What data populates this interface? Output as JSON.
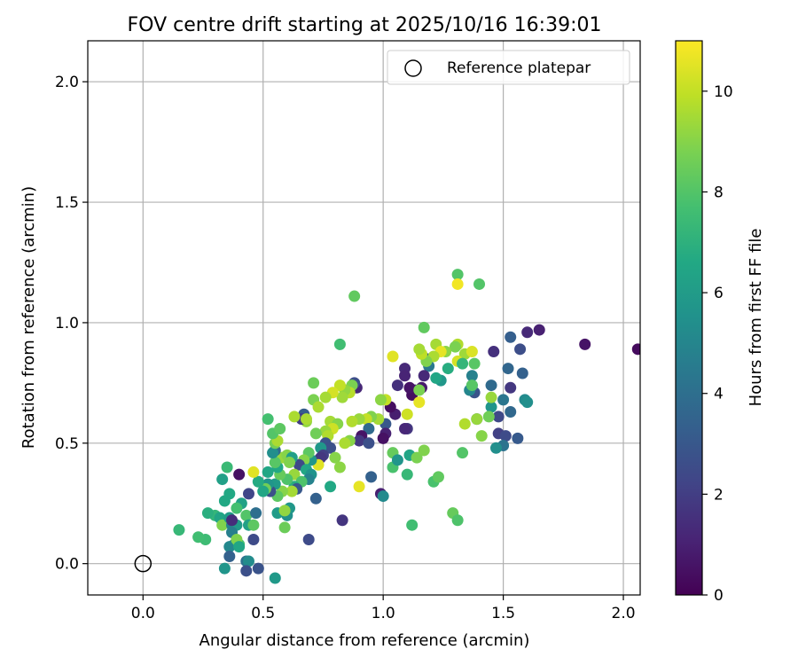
{
  "chart_data": {
    "type": "scatter",
    "title": "FOV centre drift starting at 2025/10/16 16:39:01",
    "xlabel": "Angular distance from reference (arcmin)",
    "ylabel": "Rotation from reference (arcmin)",
    "xlim": [
      -0.23,
      2.07
    ],
    "ylim": [
      -0.13,
      2.17
    ],
    "xticks": [
      0.0,
      0.5,
      1.0,
      1.5,
      2.0
    ],
    "xtick_labels": [
      "0.0",
      "0.5",
      "1.0",
      "1.5",
      "2.0"
    ],
    "yticks": [
      0.0,
      0.5,
      1.0,
      1.5,
      2.0
    ],
    "ytick_labels": [
      "0.0",
      "0.5",
      "1.0",
      "1.5",
      "2.0"
    ],
    "grid": true,
    "legend": {
      "position": "top-right",
      "entries": [
        "Reference platepar"
      ]
    },
    "reference_point": {
      "x": 0.0,
      "y": 0.0,
      "label": "Reference platepar"
    },
    "colorbar": {
      "label": "Hours from first FF file",
      "colormap": "viridis",
      "min": 0,
      "max": 11,
      "ticks": [
        0,
        2,
        4,
        6,
        8,
        10
      ],
      "tick_labels": [
        "0",
        "2",
        "4",
        "6",
        "8",
        "10"
      ]
    },
    "columns": [
      "x",
      "y",
      "hours"
    ],
    "points": [
      [
        2.06,
        0.89,
        0.3
      ],
      [
        1.84,
        0.91,
        0.6
      ],
      [
        1.65,
        0.97,
        1.0
      ],
      [
        1.6,
        0.96,
        1.3
      ],
      [
        1.57,
        0.89,
        2.6
      ],
      [
        1.53,
        0.94,
        3.3
      ],
      [
        1.46,
        0.88,
        1.5
      ],
      [
        1.52,
        0.81,
        3.6
      ],
      [
        1.58,
        0.79,
        3.4
      ],
      [
        1.59,
        0.68,
        5.2
      ],
      [
        1.6,
        0.67,
        5.4
      ],
      [
        1.53,
        0.73,
        1.8
      ],
      [
        1.45,
        0.74,
        3.8
      ],
      [
        1.5,
        0.68,
        4.3
      ],
      [
        1.53,
        0.63,
        3.7
      ],
      [
        1.48,
        0.61,
        2.4
      ],
      [
        1.48,
        0.54,
        2.1
      ],
      [
        1.51,
        0.53,
        2.5
      ],
      [
        1.5,
        0.49,
        4.2
      ],
      [
        1.56,
        0.52,
        3.1
      ],
      [
        1.47,
        0.48,
        5.4
      ],
      [
        1.45,
        0.65,
        5.7
      ],
      [
        1.45,
        0.69,
        9.3
      ],
      [
        1.44,
        0.61,
        8.6
      ],
      [
        1.41,
        0.53,
        9.0
      ],
      [
        1.39,
        0.6,
        3.8
      ],
      [
        1.38,
        0.71,
        2.8
      ],
      [
        1.37,
        0.74,
        4.3
      ],
      [
        1.36,
        0.72,
        5.0
      ],
      [
        1.37,
        0.78,
        4.8
      ],
      [
        1.38,
        0.83,
        8.1
      ],
      [
        1.34,
        0.87,
        9.4
      ],
      [
        1.37,
        0.88,
        10.4
      ],
      [
        1.31,
        0.91,
        9.7
      ],
      [
        1.3,
        0.9,
        8.8
      ],
      [
        1.31,
        0.84,
        10.3
      ],
      [
        1.33,
        0.83,
        7.2
      ],
      [
        1.27,
        0.81,
        6.8
      ],
      [
        1.24,
        0.76,
        5.8
      ],
      [
        1.19,
        0.82,
        4.4
      ],
      [
        1.18,
        0.85,
        3.4
      ],
      [
        1.17,
        0.78,
        1.3
      ],
      [
        1.16,
        0.73,
        0.8
      ],
      [
        1.13,
        0.72,
        1.3
      ],
      [
        1.12,
        0.7,
        0.4
      ],
      [
        1.11,
        0.73,
        0.6
      ],
      [
        1.09,
        0.81,
        1.3
      ],
      [
        1.09,
        0.78,
        1.1
      ],
      [
        1.06,
        0.74,
        1.5
      ],
      [
        1.04,
        0.86,
        10.5
      ],
      [
        1.17,
        0.98,
        8.3
      ],
      [
        1.22,
        0.91,
        9.5
      ],
      [
        1.26,
        0.88,
        9.1
      ],
      [
        1.24,
        0.88,
        10.6
      ],
      [
        1.21,
        0.86,
        9.6
      ],
      [
        1.18,
        0.84,
        8.9
      ],
      [
        1.16,
        0.87,
        9.9
      ],
      [
        1.15,
        0.89,
        9.5
      ],
      [
        1.15,
        0.72,
        8.8
      ],
      [
        1.15,
        0.67,
        10.6
      ],
      [
        1.1,
        0.62,
        10.2
      ],
      [
        1.1,
        0.56,
        1.8
      ],
      [
        1.09,
        0.56,
        1.2
      ],
      [
        1.05,
        0.62,
        0.9
      ],
      [
        1.03,
        0.65,
        0.4
      ],
      [
        1.01,
        0.68,
        10.0
      ],
      [
        0.99,
        0.68,
        9.1
      ],
      [
        1.01,
        0.58,
        3.0
      ],
      [
        1.01,
        0.54,
        1.0
      ],
      [
        1.0,
        0.52,
        0.5
      ],
      [
        0.98,
        0.6,
        9.5
      ],
      [
        0.95,
        0.61,
        8.9
      ],
      [
        0.93,
        0.6,
        10.0
      ],
      [
        0.9,
        0.6,
        9.3
      ],
      [
        0.87,
        0.59,
        9.7
      ],
      [
        0.94,
        0.56,
        3.8
      ],
      [
        0.91,
        0.53,
        0.6
      ],
      [
        0.9,
        0.51,
        1.8
      ],
      [
        0.86,
        0.51,
        9.0
      ],
      [
        0.84,
        0.5,
        9.6
      ],
      [
        0.94,
        0.5,
        2.7
      ],
      [
        0.95,
        0.36,
        3.4
      ],
      [
        0.99,
        0.29,
        1.0
      ],
      [
        1.0,
        0.28,
        5.2
      ],
      [
        0.9,
        0.32,
        10.6
      ],
      [
        0.83,
        0.18,
        1.7
      ],
      [
        0.89,
        0.73,
        1.2
      ],
      [
        0.88,
        0.75,
        2.6
      ],
      [
        0.87,
        0.74,
        8.8
      ],
      [
        0.86,
        0.71,
        9.8
      ],
      [
        0.84,
        0.72,
        9.2
      ],
      [
        0.82,
        0.74,
        10.0
      ],
      [
        0.83,
        0.69,
        9.4
      ],
      [
        0.79,
        0.71,
        10.3
      ],
      [
        0.76,
        0.69,
        9.5
      ],
      [
        0.71,
        0.68,
        8.8
      ],
      [
        0.73,
        0.65,
        9.6
      ],
      [
        0.71,
        0.75,
        8.5
      ],
      [
        0.68,
        0.59,
        9.2
      ],
      [
        0.67,
        0.62,
        3.2
      ],
      [
        0.66,
        0.6,
        2.0
      ],
      [
        0.63,
        0.61,
        9.6
      ],
      [
        0.68,
        0.6,
        9.6
      ],
      [
        0.78,
        0.59,
        9.5
      ],
      [
        0.81,
        0.58,
        9.0
      ],
      [
        0.79,
        0.56,
        10.2
      ],
      [
        0.76,
        0.55,
        9.3
      ],
      [
        0.72,
        0.54,
        8.6
      ],
      [
        0.77,
        0.53,
        9.7
      ],
      [
        0.76,
        0.5,
        2.8
      ],
      [
        0.78,
        0.48,
        2.7
      ],
      [
        0.74,
        0.48,
        5.8
      ],
      [
        0.75,
        0.45,
        2.1
      ],
      [
        0.73,
        0.43,
        3.6
      ],
      [
        0.74,
        0.44,
        1.8
      ],
      [
        0.8,
        0.44,
        9.0
      ],
      [
        0.73,
        0.41,
        10.5
      ],
      [
        0.82,
        0.4,
        9.1
      ],
      [
        0.7,
        0.43,
        5.8
      ],
      [
        0.69,
        0.46,
        8.2
      ],
      [
        0.67,
        0.43,
        9.0
      ],
      [
        0.65,
        0.41,
        2.4
      ],
      [
        0.68,
        0.39,
        6.5
      ],
      [
        0.7,
        0.37,
        5.6
      ],
      [
        0.69,
        0.35,
        4.9
      ],
      [
        0.63,
        0.37,
        9.3
      ],
      [
        0.66,
        0.34,
        7.9
      ],
      [
        0.63,
        0.32,
        6.8
      ],
      [
        0.64,
        0.31,
        3.0
      ],
      [
        0.62,
        0.3,
        9.5
      ],
      [
        0.6,
        0.35,
        7.9
      ],
      [
        0.58,
        0.3,
        9.0
      ],
      [
        0.56,
        0.28,
        8.2
      ],
      [
        0.55,
        0.33,
        6.0
      ],
      [
        0.53,
        0.3,
        2.7
      ],
      [
        0.52,
        0.33,
        5.7
      ],
      [
        0.51,
        0.31,
        8.6
      ],
      [
        0.5,
        0.3,
        6.5
      ],
      [
        0.57,
        0.37,
        8.4
      ],
      [
        0.56,
        0.4,
        6.6
      ],
      [
        0.58,
        0.44,
        9.3
      ],
      [
        0.6,
        0.45,
        9.0
      ],
      [
        0.62,
        0.44,
        6.2
      ],
      [
        0.61,
        0.42,
        8.9
      ],
      [
        0.55,
        0.42,
        8.1
      ],
      [
        0.55,
        0.47,
        3.8
      ],
      [
        0.54,
        0.46,
        5.4
      ],
      [
        0.55,
        0.5,
        8.7
      ],
      [
        0.56,
        0.51,
        9.6
      ],
      [
        0.54,
        0.54,
        8.0
      ],
      [
        0.57,
        0.56,
        8.2
      ],
      [
        0.52,
        0.6,
        7.7
      ],
      [
        0.52,
        0.38,
        6.5
      ],
      [
        0.48,
        0.34,
        6.7
      ],
      [
        0.46,
        0.38,
        10.5
      ],
      [
        0.44,
        0.29,
        2.3
      ],
      [
        0.4,
        0.37,
        0.5
      ],
      [
        0.35,
        0.4,
        7.4
      ],
      [
        0.36,
        0.29,
        6.6
      ],
      [
        0.33,
        0.35,
        6.2
      ],
      [
        0.34,
        0.26,
        6.6
      ],
      [
        0.3,
        0.2,
        7.2
      ],
      [
        0.27,
        0.21,
        6.9
      ],
      [
        0.32,
        0.19,
        6.4
      ],
      [
        0.33,
        0.16,
        8.9
      ],
      [
        0.37,
        0.16,
        4.9
      ],
      [
        0.39,
        0.16,
        6.0
      ],
      [
        0.41,
        0.25,
        6.3
      ],
      [
        0.39,
        0.23,
        7.7
      ],
      [
        0.43,
        0.2,
        8.0
      ],
      [
        0.36,
        0.19,
        6.0
      ],
      [
        0.37,
        0.18,
        1.4
      ],
      [
        0.37,
        0.13,
        4.7
      ],
      [
        0.38,
        0.08,
        4.8
      ],
      [
        0.36,
        0.07,
        5.1
      ],
      [
        0.4,
        0.08,
        7.7
      ],
      [
        0.39,
        0.1,
        8.9
      ],
      [
        0.4,
        0.07,
        6.5
      ],
      [
        0.44,
        0.16,
        6.2
      ],
      [
        0.46,
        0.16,
        8.2
      ],
      [
        0.47,
        0.21,
        4.0
      ],
      [
        0.46,
        0.1,
        2.5
      ],
      [
        0.43,
        0.01,
        4.2
      ],
      [
        0.44,
        0.01,
        5.3
      ],
      [
        0.36,
        0.03,
        3.4
      ],
      [
        0.34,
        -0.02,
        5.7
      ],
      [
        0.43,
        -0.03,
        2.7
      ],
      [
        0.48,
        -0.02,
        2.8
      ],
      [
        0.55,
        -0.06,
        5.9
      ],
      [
        0.26,
        0.1,
        7.5
      ],
      [
        0.23,
        0.11,
        7.6
      ],
      [
        0.15,
        0.14,
        7.3
      ],
      [
        0.56,
        0.21,
        6.0
      ],
      [
        0.6,
        0.2,
        5.5
      ],
      [
        0.61,
        0.23,
        5.8
      ],
      [
        0.59,
        0.15,
        8.5
      ],
      [
        0.59,
        0.22,
        9.2
      ],
      [
        0.69,
        0.1,
        2.5
      ],
      [
        0.72,
        0.27,
        3.4
      ],
      [
        0.78,
        0.32,
        6.6
      ],
      [
        1.04,
        0.46,
        8.4
      ],
      [
        1.04,
        0.4,
        7.8
      ],
      [
        1.06,
        0.43,
        5.7
      ],
      [
        1.11,
        0.45,
        6.4
      ],
      [
        1.14,
        0.44,
        8.8
      ],
      [
        1.17,
        0.47,
        8.9
      ],
      [
        1.1,
        0.37,
        7.3
      ],
      [
        1.21,
        0.34,
        7.8
      ],
      [
        1.23,
        0.36,
        8.3
      ],
      [
        1.29,
        0.21,
        8.4
      ],
      [
        1.31,
        0.18,
        7.9
      ],
      [
        1.33,
        0.46,
        8.0
      ],
      [
        1.34,
        0.58,
        9.7
      ],
      [
        1.39,
        0.6,
        9.3
      ],
      [
        1.37,
        0.74,
        8.1
      ],
      [
        1.22,
        0.77,
        6.5
      ],
      [
        1.12,
        0.16,
        7.6
      ],
      [
        0.88,
        1.11,
        8.3
      ],
      [
        0.82,
        0.91,
        7.6
      ],
      [
        1.31,
        1.2,
        8.0
      ],
      [
        1.31,
        1.16,
        10.8
      ],
      [
        1.4,
        1.16,
        8.0
      ]
    ]
  }
}
